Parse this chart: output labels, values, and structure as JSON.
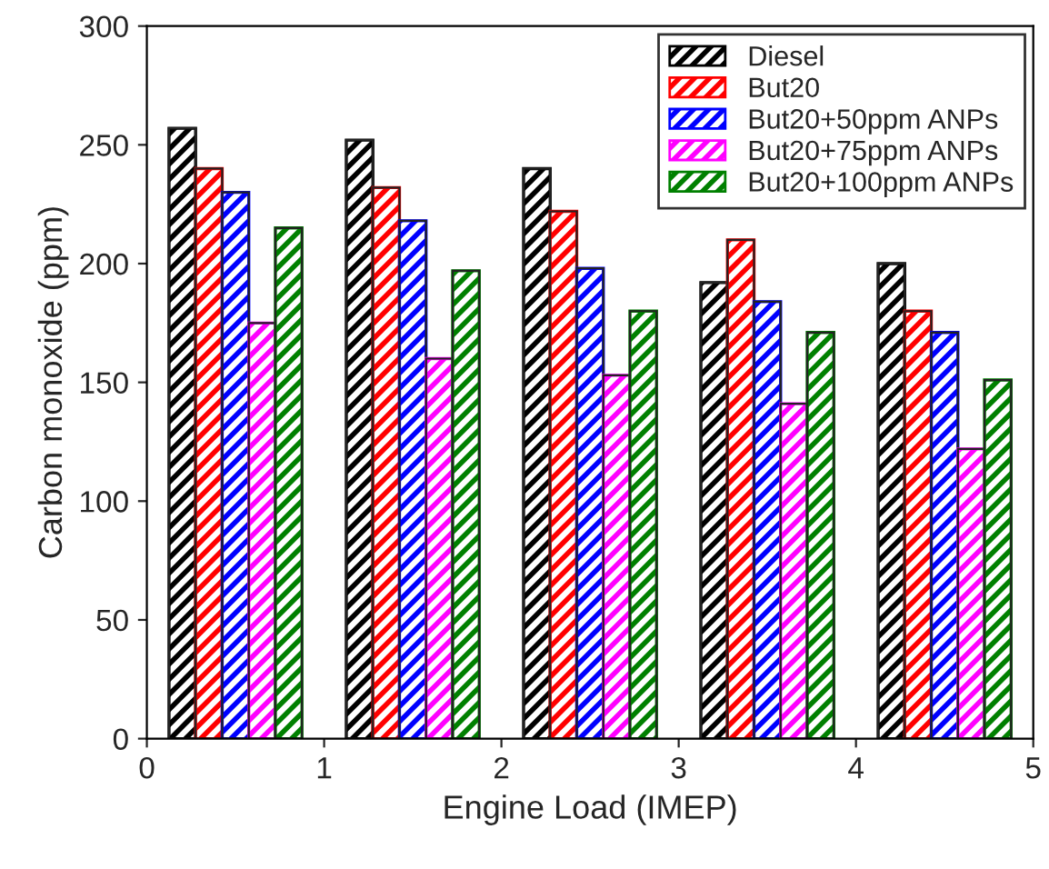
{
  "chart_data": {
    "type": "bar",
    "xlabel": "Engine Load (IMEP)",
    "ylabel": "Carbon monoxide (ppm)",
    "xlim": [
      0,
      5
    ],
    "xticks": [
      0,
      1,
      2,
      3,
      4,
      5
    ],
    "ylim": [
      0,
      300
    ],
    "yticks": [
      0,
      50,
      100,
      150,
      200,
      250,
      300
    ],
    "legend": "top right",
    "grid": false,
    "series": [
      {
        "name": "Diesel",
        "color": "#000000",
        "x": [
          0.2,
          1.2,
          2.2,
          3.2,
          4.2
        ],
        "values": [
          257,
          252,
          240,
          192,
          200
        ]
      },
      {
        "name": "But20",
        "color": "#ff0000",
        "x": [
          0.35,
          1.35,
          2.35,
          3.35,
          4.35
        ],
        "values": [
          240,
          232,
          222,
          210,
          180
        ]
      },
      {
        "name": "But20+50ppm ANPs",
        "color": "#0000ff",
        "x": [
          0.5,
          1.5,
          2.5,
          3.5,
          4.5
        ],
        "values": [
          230,
          218,
          198,
          184,
          171
        ]
      },
      {
        "name": "But20+75ppm ANPs",
        "color": "#ff00ff",
        "x": [
          0.65,
          1.65,
          2.65,
          3.65,
          4.65
        ],
        "values": [
          175,
          160,
          153,
          141,
          122
        ]
      },
      {
        "name": "But20+100ppm ANPs",
        "color": "#008000",
        "x": [
          0.8,
          1.8,
          2.8,
          3.8,
          4.8
        ],
        "values": [
          215,
          197,
          180,
          171,
          151
        ]
      }
    ]
  }
}
